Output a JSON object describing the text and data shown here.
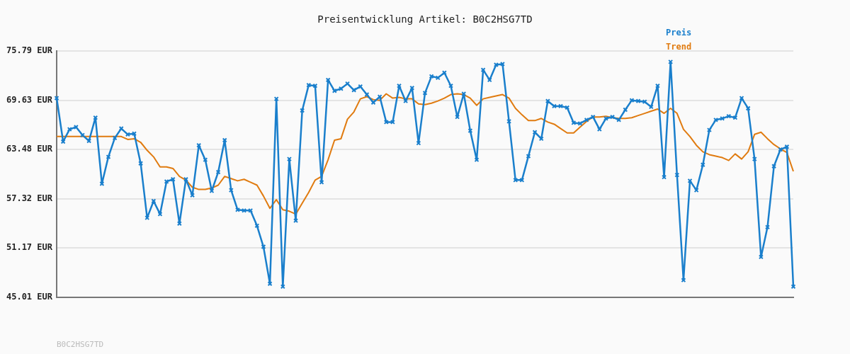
{
  "chart_data": {
    "type": "line",
    "title": "Preisentwicklung Artikel: B0C2HSG7TD",
    "annotations": [
      "B0C2HSG7TD"
    ],
    "categories": [
      null,
      null,
      null,
      null,
      null,
      null,
      null,
      null,
      null,
      null,
      null,
      null,
      null,
      null,
      null,
      null,
      null,
      null,
      null,
      null,
      null,
      null,
      null,
      null,
      null,
      null,
      null,
      null,
      null,
      null,
      null,
      null,
      null,
      null,
      null,
      null,
      null,
      null,
      null,
      null,
      null,
      null,
      null,
      null,
      null,
      null,
      null,
      null,
      null,
      null,
      null,
      null,
      null,
      null,
      null,
      null,
      null,
      null,
      null,
      null,
      null,
      null,
      null,
      null,
      null,
      null,
      null,
      null,
      null,
      null,
      null,
      null,
      null,
      null,
      null,
      null,
      null,
      null,
      null,
      null,
      null,
      null,
      null,
      null,
      null,
      null,
      null,
      null,
      null,
      null,
      null,
      null,
      null,
      null,
      null,
      null,
      null,
      null,
      null,
      null,
      null,
      null,
      null,
      null,
      null,
      null,
      null,
      null,
      null,
      null,
      null,
      null,
      null,
      null,
      null
    ],
    "series": [
      {
        "name": "Preis",
        "color": "#1a7fcc",
        "marker": "cross",
        "values": [
          69.9,
          64.47,
          66.01,
          66.28,
          65.28,
          64.56,
          67.46,
          59.21,
          62.56,
          64.92,
          66.1,
          65.37,
          65.46,
          61.75,
          54.95,
          57.04,
          55.41,
          59.48,
          59.76,
          54.23,
          59.76,
          57.76,
          64.01,
          62.2,
          58.31,
          60.66,
          64.65,
          58.4,
          55.95,
          55.86,
          55.86,
          53.96,
          51.33,
          46.71,
          69.81,
          46.35,
          62.29,
          54.59,
          68.36,
          71.53,
          71.44,
          59.39,
          72.17,
          70.81,
          71.08,
          71.71,
          70.9,
          71.35,
          70.35,
          69.36,
          70.08,
          66.91,
          66.91,
          71.44,
          69.54,
          71.17,
          64.28,
          70.54,
          72.62,
          72.44,
          73.07,
          71.44,
          67.55,
          70.44,
          65.83,
          62.2,
          73.43,
          72.17,
          74.07,
          74.16,
          67.0,
          59.66,
          59.66,
          62.65,
          65.64,
          64.83,
          69.54,
          68.9,
          68.9,
          68.72,
          66.82,
          66.73,
          67.18,
          67.55,
          66.01,
          67.36,
          67.55,
          67.18,
          68.45,
          69.63,
          69.54,
          69.45,
          68.81,
          71.44,
          60.03,
          74.43,
          60.3,
          47.16,
          59.57,
          58.4,
          61.57,
          65.92,
          67.18,
          67.36,
          67.64,
          67.46,
          69.9,
          68.63,
          62.29,
          50.06,
          53.78,
          61.39,
          63.47,
          63.83,
          46.35
        ]
      },
      {
        "name": "Trend",
        "color": "#e07b10",
        "marker": "none",
        "values": [
          65.1,
          65.1,
          65.1,
          65.1,
          65.1,
          65.1,
          65.1,
          65.1,
          65.1,
          65.1,
          65.1,
          64.74,
          64.83,
          64.38,
          63.38,
          62.56,
          61.3,
          61.3,
          61.11,
          60.12,
          59.66,
          58.76,
          58.49,
          58.49,
          58.67,
          59.03,
          60.12,
          59.85,
          59.57,
          59.76,
          59.39,
          59.03,
          57.67,
          56.13,
          57.22,
          55.95,
          55.77,
          55.41,
          56.77,
          58.12,
          59.66,
          60.12,
          62.2,
          64.65,
          64.83,
          67.27,
          68.18,
          69.81,
          70.08,
          69.72,
          69.63,
          70.44,
          69.9,
          69.99,
          69.81,
          69.81,
          69.18,
          69.09,
          69.27,
          69.54,
          69.9,
          70.35,
          70.44,
          70.35,
          69.9,
          69.0,
          69.81,
          69.99,
          70.17,
          70.35,
          69.9,
          68.63,
          67.82,
          67.09,
          67.09,
          67.36,
          66.91,
          66.64,
          66.1,
          65.55,
          65.55,
          66.28,
          67.0,
          67.55,
          67.55,
          67.64,
          67.46,
          67.36,
          67.36,
          67.46,
          67.73,
          68.0,
          68.27,
          68.54,
          68.0,
          68.63,
          68.0,
          66.01,
          65.1,
          64.01,
          63.2,
          62.84,
          62.65,
          62.47,
          62.11,
          62.93,
          62.29,
          63.2,
          65.37,
          65.64,
          64.83,
          64.1,
          63.56,
          63.11,
          60.75
        ]
      }
    ],
    "ylim": [
      45.01,
      75.79
    ],
    "yticks": [
      {
        "value": 45.01,
        "label": "45.01 EUR"
      },
      {
        "value": 51.17,
        "label": "51.17 EUR"
      },
      {
        "value": 57.32,
        "label": "57.32 EUR"
      },
      {
        "value": 63.48,
        "label": "63.48 EUR"
      },
      {
        "value": 69.63,
        "label": "69.63 EUR"
      },
      {
        "value": 75.79,
        "label": "75.79 EUR"
      }
    ],
    "grid": "y",
    "legend": "top right",
    "line_style": "solid",
    "tick_labels": "y"
  }
}
